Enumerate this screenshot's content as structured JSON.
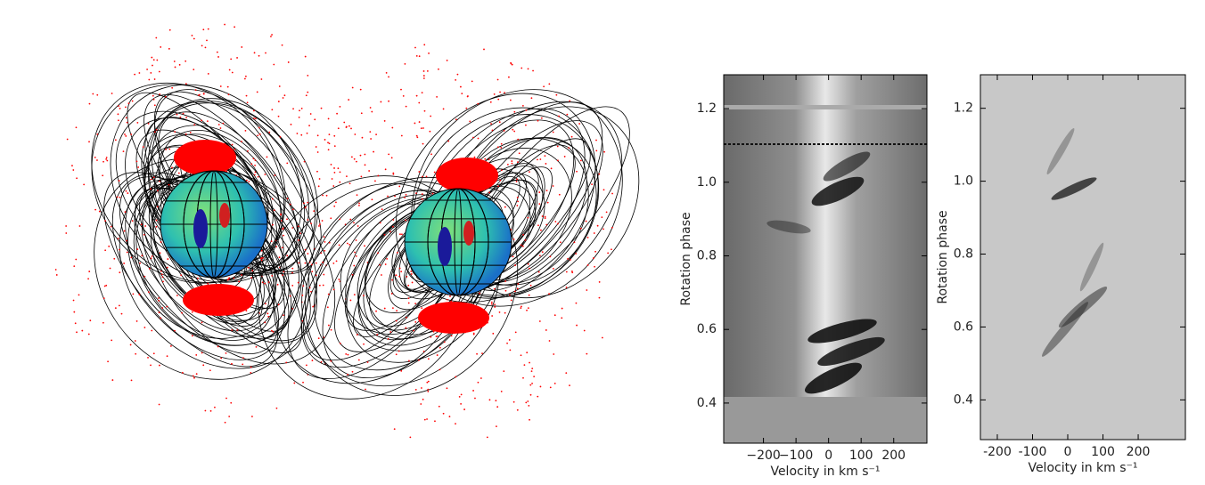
{
  "chart_data": [
    {
      "type": "image",
      "ylabel": "Rotation phase",
      "xlabel": "Velocity in km s⁻¹",
      "xlim": [
        -322,
        302
      ],
      "ylim": [
        0.291,
        1.292
      ],
      "xticks": [
        {
          "value": -200,
          "label": "−200"
        },
        {
          "value": -100,
          "label": "−100"
        },
        0,
        100,
        200
      ],
      "yticks": [
        0.4,
        0.6,
        0.8,
        {
          "value": 1,
          "label": "1.0"
        },
        1.2
      ]
    },
    {
      "type": "image",
      "ylabel": "Rotation phase",
      "xlabel": "Velocity in km s⁻¹",
      "xlim": [
        -248,
        334
      ],
      "ylim": [
        0.291,
        1.292
      ],
      "xticks": [
        -200,
        -100,
        0,
        100,
        200
      ],
      "yticks": [
        0.4,
        0.6,
        0.8,
        {
          "value": 1,
          "label": "1.0"
        },
        1.2
      ]
    }
  ]
}
